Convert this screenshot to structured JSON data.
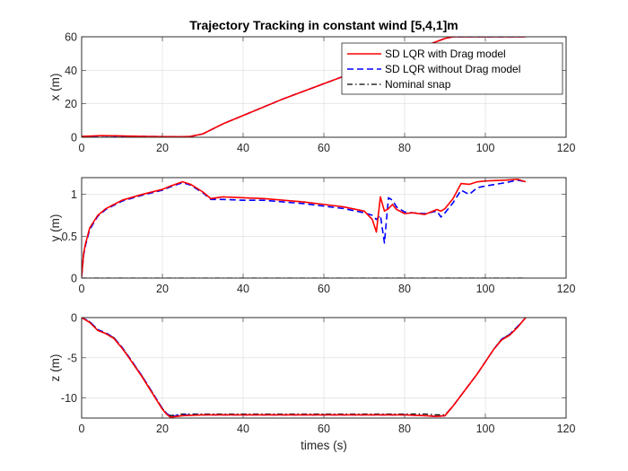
{
  "chart_data": [
    {
      "type": "line",
      "title": "Trajectory Tracking in constant wind [5,4,1]m",
      "xlabel": "",
      "ylabel": "x (m)",
      "xlim": [
        0,
        120
      ],
      "ylim": [
        0,
        60
      ],
      "xticks": [
        0,
        20,
        40,
        60,
        80,
        100,
        120
      ],
      "yticks": [
        0,
        20,
        40,
        60
      ],
      "grid": true,
      "legend": {
        "placement": "top-right"
      },
      "series": [
        {
          "name": "SD LQR with Drag model",
          "color": "#ff0000",
          "style": "solid",
          "x": [
            0,
            5,
            10,
            15,
            20,
            25,
            27,
            30,
            35,
            40,
            50,
            60,
            70,
            80,
            85,
            90,
            92,
            95,
            100,
            105,
            110
          ],
          "y": [
            0.5,
            1,
            0.8,
            0.5,
            0.4,
            0.3,
            0.5,
            2,
            8,
            13,
            23,
            32,
            41,
            50,
            54.5,
            59,
            60,
            60,
            60,
            60,
            60
          ]
        },
        {
          "name": "SD LQR without Drag model",
          "color": "#0000ff",
          "style": "dashed",
          "x": [
            0,
            5,
            10,
            15,
            20,
            25,
            27,
            30,
            35,
            40,
            50,
            60,
            70,
            80,
            85,
            90,
            92,
            95,
            100,
            105,
            110
          ],
          "y": [
            0.4,
            0.9,
            0.7,
            0.5,
            0.4,
            0.3,
            0.5,
            2,
            8,
            13,
            23,
            32,
            41,
            50,
            54.5,
            59,
            60,
            60,
            60,
            60,
            60
          ]
        },
        {
          "name": "Nominal snap",
          "color": "#000000",
          "style": "dashdot",
          "x": [
            0,
            5,
            10,
            15,
            20,
            25,
            27,
            30,
            35,
            40,
            50,
            60,
            70,
            80,
            85,
            90,
            92,
            95,
            100,
            105,
            110
          ],
          "y": [
            0,
            0,
            0,
            0,
            0,
            0,
            0.4,
            2,
            8,
            13,
            23,
            32,
            41,
            50,
            54.5,
            59,
            60,
            60,
            60,
            60,
            60
          ]
        }
      ]
    },
    {
      "type": "line",
      "title": "",
      "xlabel": "",
      "ylabel": "y (m)",
      "xlim": [
        0,
        120
      ],
      "ylim": [
        0,
        1.2
      ],
      "xticks": [
        0,
        20,
        40,
        60,
        80,
        100,
        120
      ],
      "yticks": [
        0,
        0.5,
        1
      ],
      "grid": true,
      "series": [
        {
          "name": "SD LQR with Drag model",
          "color": "#ff0000",
          "style": "solid",
          "x": [
            0,
            0.5,
            1,
            2,
            4,
            6,
            8,
            10,
            15,
            20,
            22,
            25,
            27,
            30,
            32,
            35,
            40,
            45,
            50,
            55,
            60,
            65,
            70,
            72,
            73,
            74,
            75,
            76,
            77,
            78,
            80,
            82,
            85,
            87,
            88,
            89,
            90,
            92,
            94,
            96,
            98,
            100,
            105,
            108,
            110
          ],
          "y": [
            0.02,
            0.3,
            0.42,
            0.6,
            0.75,
            0.83,
            0.88,
            0.93,
            1.0,
            1.06,
            1.1,
            1.15,
            1.12,
            1.03,
            0.95,
            0.97,
            0.96,
            0.95,
            0.93,
            0.91,
            0.88,
            0.85,
            0.8,
            0.7,
            0.55,
            0.97,
            0.8,
            0.83,
            0.88,
            0.82,
            0.77,
            0.78,
            0.76,
            0.8,
            0.82,
            0.8,
            0.83,
            0.95,
            1.13,
            1.12,
            1.15,
            1.16,
            1.17,
            1.18,
            1.15
          ]
        },
        {
          "name": "SD LQR without Drag model",
          "color": "#0000ff",
          "style": "dashed",
          "x": [
            0,
            0.5,
            1,
            2,
            4,
            6,
            8,
            10,
            15,
            20,
            22,
            25,
            27,
            30,
            32,
            35,
            40,
            45,
            50,
            55,
            60,
            65,
            70,
            72,
            73,
            74,
            75,
            76,
            77,
            78,
            80,
            82,
            85,
            87,
            88,
            89,
            90,
            92,
            94,
            96,
            98,
            100,
            105,
            108,
            110
          ],
          "y": [
            0.02,
            0.28,
            0.4,
            0.58,
            0.74,
            0.82,
            0.87,
            0.92,
            0.99,
            1.05,
            1.09,
            1.14,
            1.11,
            1.02,
            0.94,
            0.94,
            0.93,
            0.93,
            0.91,
            0.89,
            0.86,
            0.83,
            0.78,
            0.75,
            0.7,
            0.75,
            0.42,
            0.96,
            0.93,
            0.85,
            0.79,
            0.78,
            0.77,
            0.79,
            0.8,
            0.73,
            0.78,
            0.9,
            1.05,
            1.0,
            1.08,
            1.1,
            1.14,
            1.17,
            1.15
          ]
        },
        {
          "name": "Nominal snap",
          "color": "#000000",
          "style": "dashdot",
          "x": [
            0,
            110
          ],
          "y": [
            0,
            0
          ]
        }
      ]
    },
    {
      "type": "line",
      "title": "",
      "xlabel": "times (s)",
      "ylabel": "z (m)",
      "xlim": [
        0,
        120
      ],
      "ylim": [
        -12.5,
        0
      ],
      "xticks": [
        0,
        20,
        40,
        60,
        80,
        100,
        120
      ],
      "yticks": [
        -10,
        -5,
        0
      ],
      "grid": true,
      "series": [
        {
          "name": "SD LQR with Drag model",
          "color": "#ff0000",
          "style": "solid",
          "x": [
            0,
            2,
            4,
            6,
            8,
            10,
            12,
            15,
            18,
            20,
            21,
            22,
            25,
            30,
            40,
            50,
            60,
            70,
            80,
            85,
            88,
            90,
            92,
            95,
            98,
            100,
            102,
            104,
            106,
            108,
            110
          ],
          "y": [
            0,
            -0.6,
            -1.6,
            -2,
            -2.6,
            -3.8,
            -5.2,
            -7.4,
            -9.8,
            -11.4,
            -12,
            -12.4,
            -12.2,
            -12.1,
            -12.1,
            -12.1,
            -12.1,
            -12.1,
            -12.1,
            -12.2,
            -12.3,
            -12.2,
            -11,
            -9,
            -7,
            -5.5,
            -4,
            -2.8,
            -2.2,
            -1.2,
            0
          ]
        },
        {
          "name": "SD LQR without Drag model",
          "color": "#0000ff",
          "style": "dashed",
          "x": [
            0,
            2,
            4,
            6,
            8,
            10,
            12,
            15,
            18,
            20,
            21,
            22,
            25,
            30,
            40,
            50,
            60,
            70,
            80,
            85,
            88,
            90,
            92,
            95,
            98,
            100,
            102,
            104,
            106,
            108,
            110
          ],
          "y": [
            0,
            -0.5,
            -1.5,
            -1.9,
            -2.5,
            -3.7,
            -5.1,
            -7.3,
            -9.7,
            -11.3,
            -11.9,
            -12.3,
            -12.1,
            -12.1,
            -12.1,
            -12.1,
            -12.1,
            -12.1,
            -12.1,
            -12.2,
            -12.3,
            -12.2,
            -11,
            -9,
            -7,
            -5.5,
            -4,
            -2.7,
            -2.1,
            -1.1,
            0
          ]
        },
        {
          "name": "Nominal snap",
          "color": "#000000",
          "style": "dashdot",
          "x": [
            0,
            2,
            4,
            6,
            8,
            10,
            12,
            15,
            18,
            20,
            21,
            22,
            25,
            30,
            40,
            50,
            60,
            70,
            80,
            85,
            88,
            90,
            92,
            95,
            98,
            100,
            102,
            104,
            106,
            108,
            110
          ],
          "y": [
            0,
            -0.5,
            -1.5,
            -2,
            -2.5,
            -3.7,
            -5.1,
            -7.3,
            -9.7,
            -11.3,
            -11.9,
            -12.2,
            -12,
            -12,
            -12,
            -12,
            -12,
            -12,
            -12,
            -12,
            -12.1,
            -12.1,
            -11,
            -9,
            -7,
            -5.5,
            -4,
            -2.7,
            -2.1,
            -1.1,
            0
          ]
        }
      ]
    }
  ]
}
